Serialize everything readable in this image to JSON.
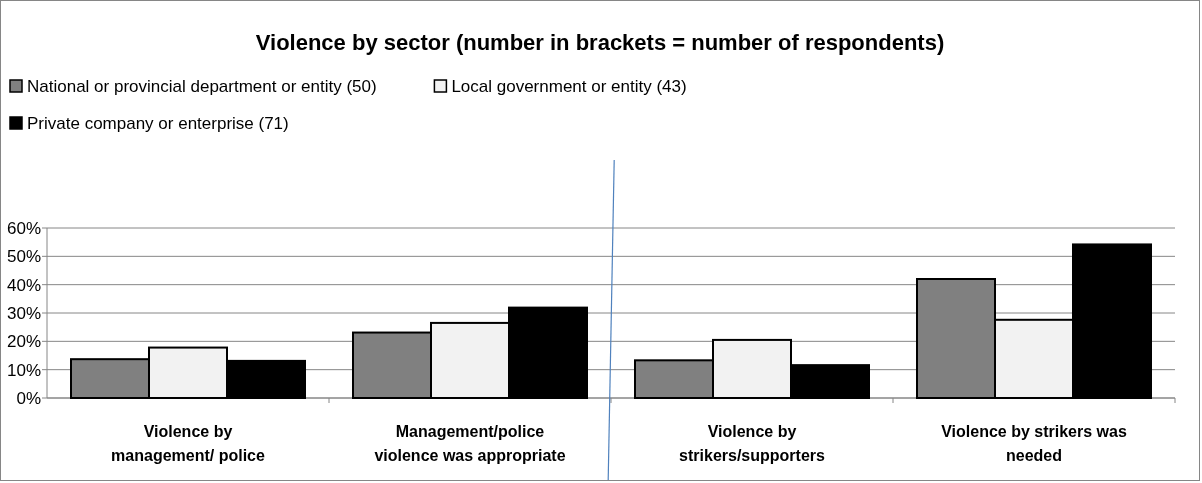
{
  "chart_data": {
    "type": "bar",
    "title": "Violence by sector (number in brackets = number of respondents)",
    "categories": [
      "Violence by\nmanagement/ police",
      "Management/police\nviolence was appropriate",
      "Violence by\nstrikers/supporters",
      "Violence by strikers was\nneeded"
    ],
    "series": [
      {
        "name": "National or provincial department or entity (50)",
        "color": "#808080",
        "values": [
          13.7,
          23.1,
          13.3,
          42.0
        ]
      },
      {
        "name": "Local government or entity (43)",
        "color": "#f2f2f2",
        "values": [
          17.8,
          26.5,
          20.5,
          27.6
        ]
      },
      {
        "name": "Private company or enterprise (71)",
        "color": "#000000",
        "values": [
          13.1,
          31.9,
          11.6,
          54.2
        ]
      }
    ],
    "ylim": [
      0,
      60
    ],
    "yticks": [
      {
        "value": 0,
        "label": "0%"
      },
      {
        "value": 10,
        "label": "10%"
      },
      {
        "value": 20,
        "label": "20%"
      },
      {
        "value": 30,
        "label": "30%"
      },
      {
        "value": 40,
        "label": "40%"
      },
      {
        "value": 50,
        "label": "50%"
      },
      {
        "value": 60,
        "label": "60%"
      }
    ],
    "grid": "y",
    "legend": "top left"
  }
}
